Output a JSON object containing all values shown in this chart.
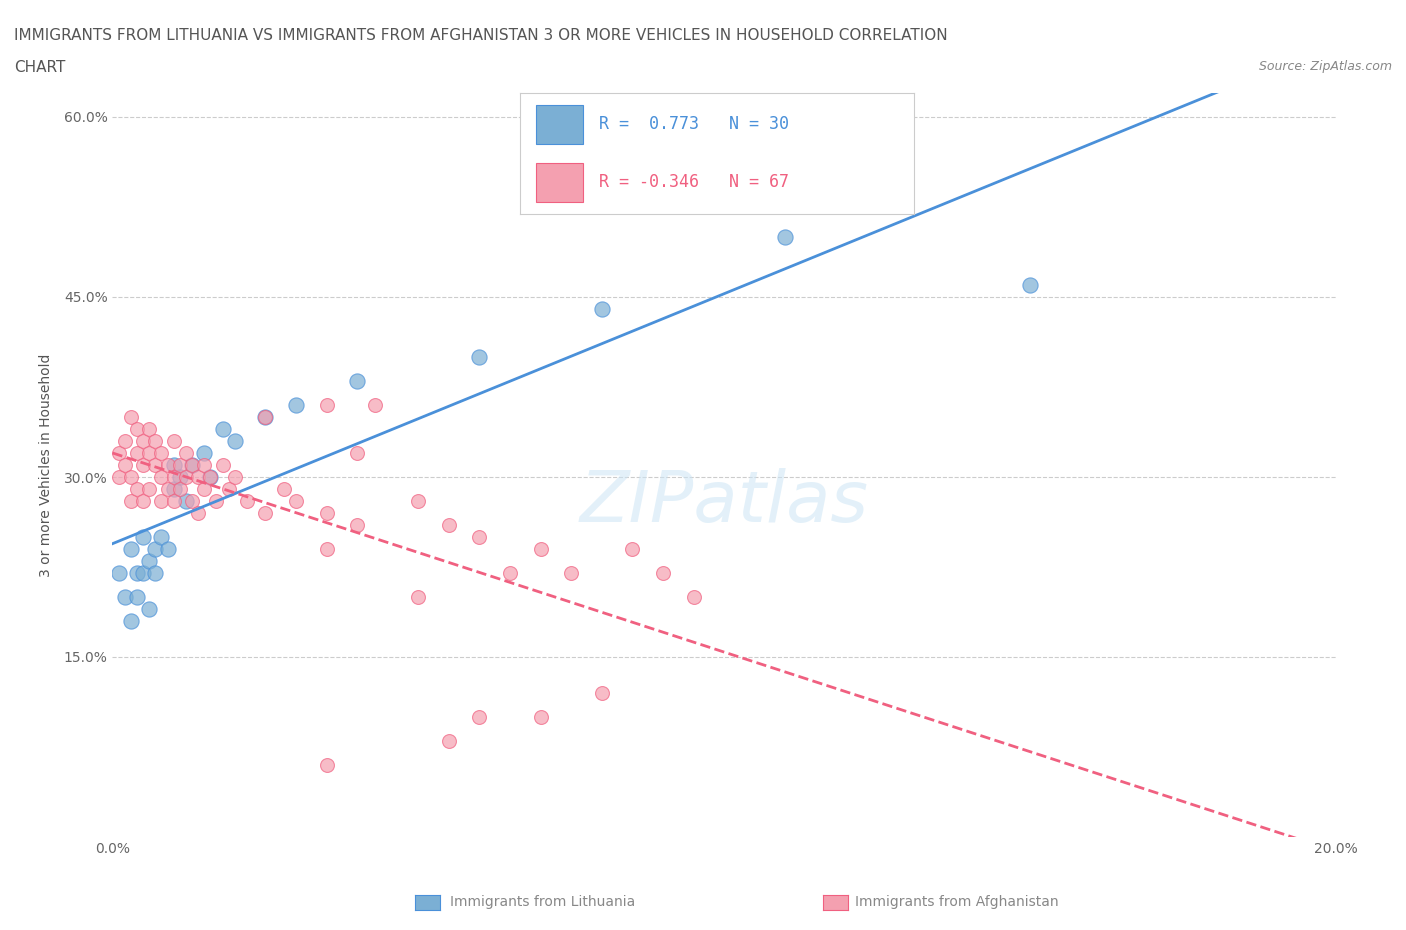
{
  "title_line1": "IMMIGRANTS FROM LITHUANIA VS IMMIGRANTS FROM AFGHANISTAN 3 OR MORE VEHICLES IN HOUSEHOLD CORRELATION",
  "title_line2": "CHART",
  "source": "Source: ZipAtlas.com",
  "ylabel": "3 or more Vehicles in Household",
  "legend_blue_r": "0.773",
  "legend_blue_n": "30",
  "legend_pink_r": "-0.346",
  "legend_pink_n": "67",
  "xlabel_label1": "Immigrants from Lithuania",
  "xlabel_label2": "Immigrants from Afghanistan",
  "xlim": [
    0.0,
    0.2
  ],
  "ylim": [
    0.0,
    0.62
  ],
  "xticks": [
    0.0,
    0.05,
    0.1,
    0.15,
    0.2
  ],
  "xticklabels": [
    "0.0%",
    "",
    "",
    "",
    "20.0%"
  ],
  "yticks": [
    0.0,
    0.15,
    0.3,
    0.45,
    0.6
  ],
  "yticklabels": [
    "",
    "15.0%",
    "30.0%",
    "45.0%",
    "60.0%"
  ],
  "blue_color": "#7bafd4",
  "pink_color": "#f4a0b0",
  "blue_line_color": "#4a90d9",
  "pink_line_color": "#f06080",
  "blue_scatter": [
    [
      0.001,
      0.22
    ],
    [
      0.002,
      0.2
    ],
    [
      0.003,
      0.24
    ],
    [
      0.003,
      0.18
    ],
    [
      0.004,
      0.22
    ],
    [
      0.004,
      0.2
    ],
    [
      0.005,
      0.25
    ],
    [
      0.005,
      0.22
    ],
    [
      0.006,
      0.23
    ],
    [
      0.006,
      0.19
    ],
    [
      0.007,
      0.24
    ],
    [
      0.007,
      0.22
    ],
    [
      0.008,
      0.25
    ],
    [
      0.009,
      0.24
    ],
    [
      0.01,
      0.31
    ],
    [
      0.01,
      0.29
    ],
    [
      0.011,
      0.3
    ],
    [
      0.012,
      0.28
    ],
    [
      0.013,
      0.31
    ],
    [
      0.015,
      0.32
    ],
    [
      0.016,
      0.3
    ],
    [
      0.018,
      0.34
    ],
    [
      0.02,
      0.33
    ],
    [
      0.025,
      0.35
    ],
    [
      0.03,
      0.36
    ],
    [
      0.04,
      0.38
    ],
    [
      0.06,
      0.4
    ],
    [
      0.08,
      0.44
    ],
    [
      0.11,
      0.5
    ],
    [
      0.15,
      0.46
    ]
  ],
  "pink_scatter": [
    [
      0.001,
      0.32
    ],
    [
      0.001,
      0.3
    ],
    [
      0.002,
      0.33
    ],
    [
      0.002,
      0.31
    ],
    [
      0.003,
      0.35
    ],
    [
      0.003,
      0.3
    ],
    [
      0.003,
      0.28
    ],
    [
      0.004,
      0.34
    ],
    [
      0.004,
      0.32
    ],
    [
      0.004,
      0.29
    ],
    [
      0.005,
      0.33
    ],
    [
      0.005,
      0.31
    ],
    [
      0.005,
      0.28
    ],
    [
      0.006,
      0.34
    ],
    [
      0.006,
      0.32
    ],
    [
      0.006,
      0.29
    ],
    [
      0.007,
      0.33
    ],
    [
      0.007,
      0.31
    ],
    [
      0.008,
      0.32
    ],
    [
      0.008,
      0.3
    ],
    [
      0.008,
      0.28
    ],
    [
      0.009,
      0.31
    ],
    [
      0.009,
      0.29
    ],
    [
      0.01,
      0.33
    ],
    [
      0.01,
      0.3
    ],
    [
      0.01,
      0.28
    ],
    [
      0.011,
      0.31
    ],
    [
      0.011,
      0.29
    ],
    [
      0.012,
      0.32
    ],
    [
      0.012,
      0.3
    ],
    [
      0.013,
      0.31
    ],
    [
      0.013,
      0.28
    ],
    [
      0.014,
      0.3
    ],
    [
      0.014,
      0.27
    ],
    [
      0.015,
      0.31
    ],
    [
      0.015,
      0.29
    ],
    [
      0.016,
      0.3
    ],
    [
      0.017,
      0.28
    ],
    [
      0.018,
      0.31
    ],
    [
      0.019,
      0.29
    ],
    [
      0.02,
      0.3
    ],
    [
      0.022,
      0.28
    ],
    [
      0.025,
      0.27
    ],
    [
      0.028,
      0.29
    ],
    [
      0.03,
      0.28
    ],
    [
      0.035,
      0.27
    ],
    [
      0.04,
      0.26
    ],
    [
      0.043,
      0.36
    ],
    [
      0.035,
      0.24
    ],
    [
      0.05,
      0.28
    ],
    [
      0.055,
      0.26
    ],
    [
      0.06,
      0.25
    ],
    [
      0.065,
      0.22
    ],
    [
      0.07,
      0.24
    ],
    [
      0.075,
      0.22
    ],
    [
      0.08,
      0.12
    ],
    [
      0.085,
      0.24
    ],
    [
      0.09,
      0.22
    ],
    [
      0.095,
      0.2
    ],
    [
      0.06,
      0.1
    ],
    [
      0.04,
      0.32
    ],
    [
      0.05,
      0.2
    ],
    [
      0.055,
      0.08
    ],
    [
      0.025,
      0.35
    ],
    [
      0.035,
      0.36
    ],
    [
      0.07,
      0.1
    ],
    [
      0.035,
      0.06
    ]
  ],
  "blue_marker_size": 120,
  "pink_marker_size": 100,
  "grid_color": "#cccccc",
  "background_color": "#ffffff",
  "title_color": "#555555",
  "axis_label_color": "#555555"
}
